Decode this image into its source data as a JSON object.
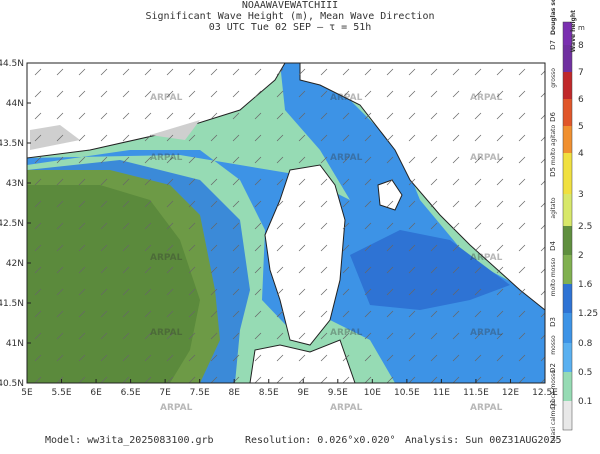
{
  "header": {
    "model": "NOAAWAVEWATCHIII",
    "title": "Significant Wave Height (m), Mean Wave Direction",
    "time": "03 UTC Tue 02 SEP  –  τ = 51h"
  },
  "map": {
    "lat_labels": [
      "44.5N",
      "44N",
      "43.5N",
      "43N",
      "42.5N",
      "42N",
      "41.5N",
      "41N",
      "40.5N"
    ],
    "lon_labels": [
      "5E",
      "5.5E",
      "6E",
      "6.5E",
      "7E",
      "7.5E",
      "8E",
      "8.5E",
      "9E",
      "9.5E",
      "10E",
      "10.5E",
      "11E",
      "11.5E",
      "12E",
      "12.5E"
    ],
    "watermark": "ARPAL"
  },
  "legend": {
    "douglas_title": "Douglas scale",
    "height_title": "Wave height",
    "height_unit": "m",
    "levels": [
      "8",
      "7",
      "6",
      "5",
      "4",
      "3",
      "2.5",
      "2",
      "1.6",
      "1.25",
      "0.8",
      "0.5",
      "0.1"
    ],
    "douglas": [
      "D7",
      "D6",
      "D5",
      "D4",
      "D3",
      "D2",
      "D1"
    ],
    "descriptions": [
      "grosso",
      "molto agitato",
      "agitato",
      "molto mosso",
      "mosso",
      "poco mosso",
      "quasi calmo"
    ]
  },
  "footer": {
    "model": "Model: ww3ita_2025083100.grb",
    "resolution": "Resolution: 0.026°x0.020°",
    "analysis": "Analysis: Sun 00Z31AUG2025"
  }
}
